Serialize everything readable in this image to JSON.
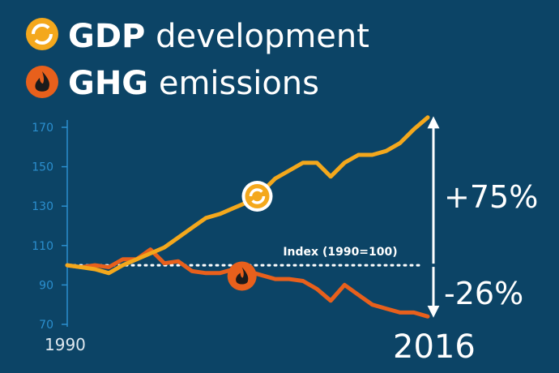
{
  "legend": {
    "gdp": {
      "bold": "GDP",
      "rest": " development",
      "icon": "circular-arrows-icon",
      "color": "#f4a81c"
    },
    "ghg": {
      "bold": "GHG",
      "rest": " emissions",
      "icon": "flame-icon",
      "color": "#e8601c"
    }
  },
  "chart_data": {
    "type": "line",
    "ylim": [
      70,
      175
    ],
    "yticks": [
      70,
      90,
      110,
      130,
      150,
      170
    ],
    "xlim": [
      1990,
      2016
    ],
    "x_start_label": "1990",
    "x_end_label": "2016",
    "baseline": {
      "value": 100,
      "label": "Index (1990=100)"
    },
    "series": [
      {
        "key": "gdp",
        "color": "#f4a81c",
        "x": [
          1990,
          1991,
          1992,
          1993,
          1994,
          1995,
          1996,
          1997,
          1998,
          1999,
          2000,
          2001,
          2002,
          2003,
          2004,
          2005,
          2006,
          2007,
          2008,
          2009,
          2010,
          2011,
          2012,
          2013,
          2014,
          2015,
          2016
        ],
        "values": [
          100,
          99,
          98,
          96,
          100,
          103,
          106,
          109,
          114,
          119,
          124,
          126,
          129,
          132,
          137,
          144,
          148,
          152,
          152,
          145,
          152,
          156,
          156,
          158,
          162,
          169,
          175
        ]
      },
      {
        "key": "ghg",
        "color": "#e8601c",
        "x": [
          1990,
          1991,
          1992,
          1993,
          1994,
          1995,
          1996,
          1997,
          1998,
          1999,
          2000,
          2001,
          2002,
          2003,
          2004,
          2005,
          2006,
          2007,
          2008,
          2009,
          2010,
          2011,
          2012,
          2013,
          2014,
          2015,
          2016
        ],
        "values": [
          100,
          99,
          100,
          99,
          103,
          103,
          108,
          101,
          102,
          97,
          96,
          96,
          98,
          97,
          95,
          93,
          93,
          92,
          88,
          82,
          90,
          85,
          80,
          78,
          76,
          76,
          74
        ]
      }
    ],
    "annotations": [
      {
        "series": "gdp",
        "text": "+75%"
      },
      {
        "series": "ghg",
        "text": "-26%"
      }
    ]
  }
}
